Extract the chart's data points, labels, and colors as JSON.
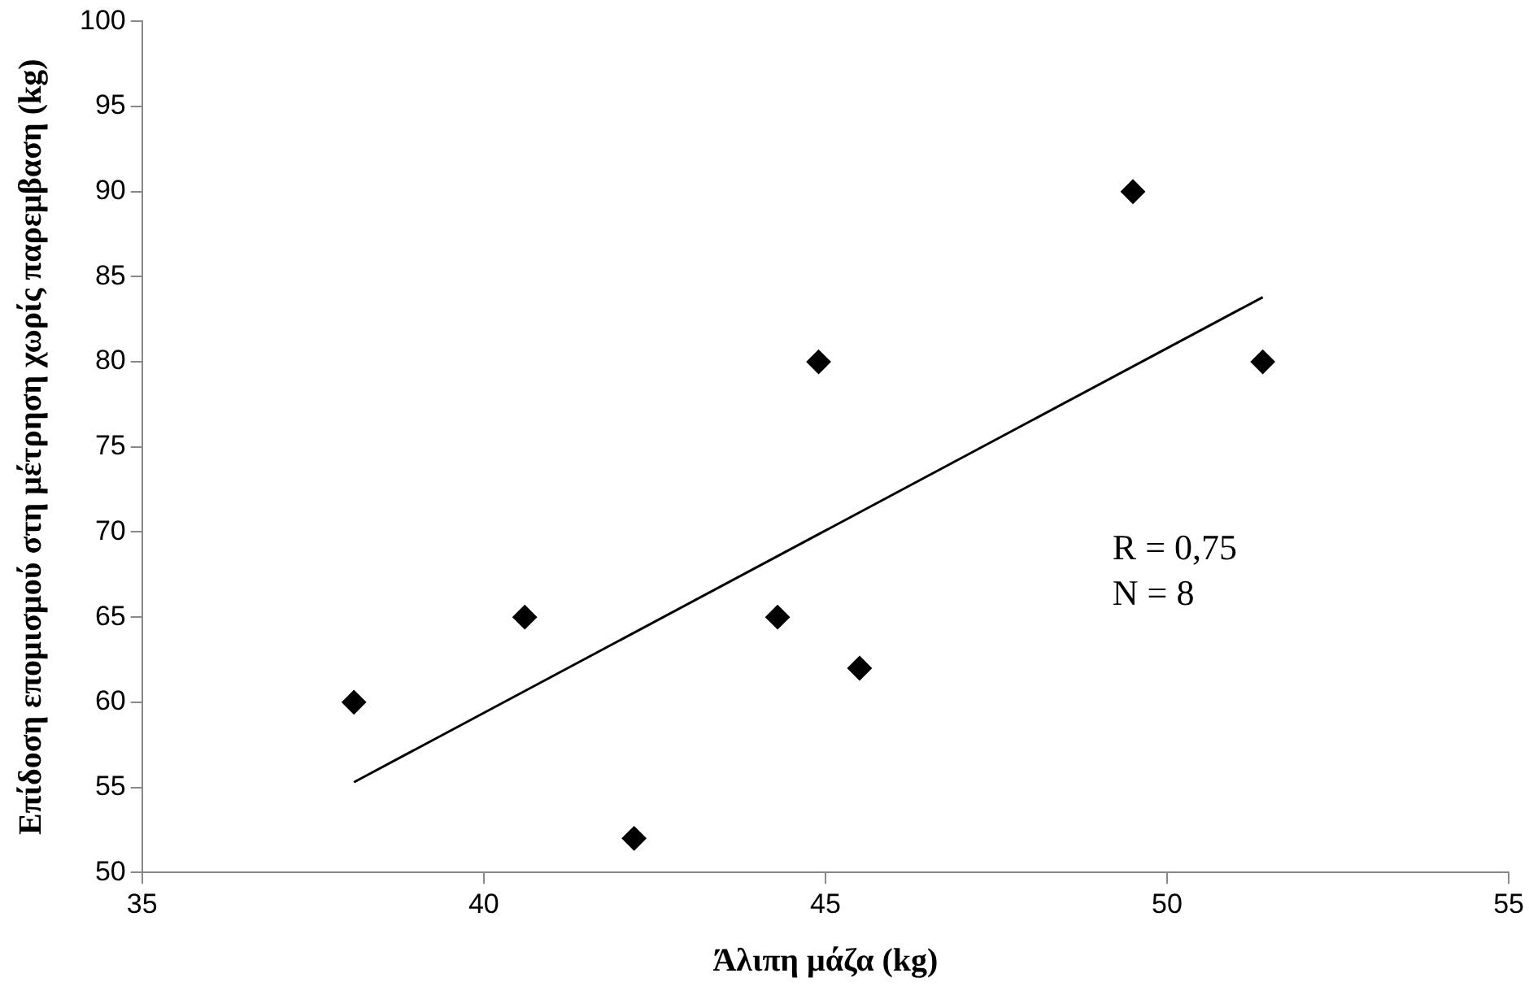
{
  "chart_data": {
    "type": "scatter",
    "xlabel": "Άλιπη μάζα (kg)",
    "ylabel": "Επίδοση επομισμού στη μέτρηση χωρίς παρεμβαση (kg)",
    "xlim": [
      35,
      55
    ],
    "xticks": [
      35,
      40,
      45,
      50,
      55
    ],
    "ylim": [
      50,
      100
    ],
    "yticks": [
      50,
      55,
      60,
      65,
      70,
      75,
      80,
      85,
      90,
      95,
      100
    ],
    "grid": false,
    "legend": false,
    "marker": "diamond",
    "series": [
      {
        "color": "#000000",
        "x": [
          38.1,
          40.6,
          42.2,
          44.3,
          44.9,
          45.5,
          49.5,
          51.4
        ],
        "values": [
          60,
          65,
          52,
          65,
          80,
          62,
          90,
          80
        ]
      },
      {
        "type": "line",
        "color": "#000000",
        "marker": "none",
        "line_style": "solid",
        "x": [
          38.1,
          51.4
        ],
        "values": [
          55.3,
          83.8
        ]
      }
    ],
    "annotations": [
      "R = 0,75",
      "N = 8"
    ]
  }
}
